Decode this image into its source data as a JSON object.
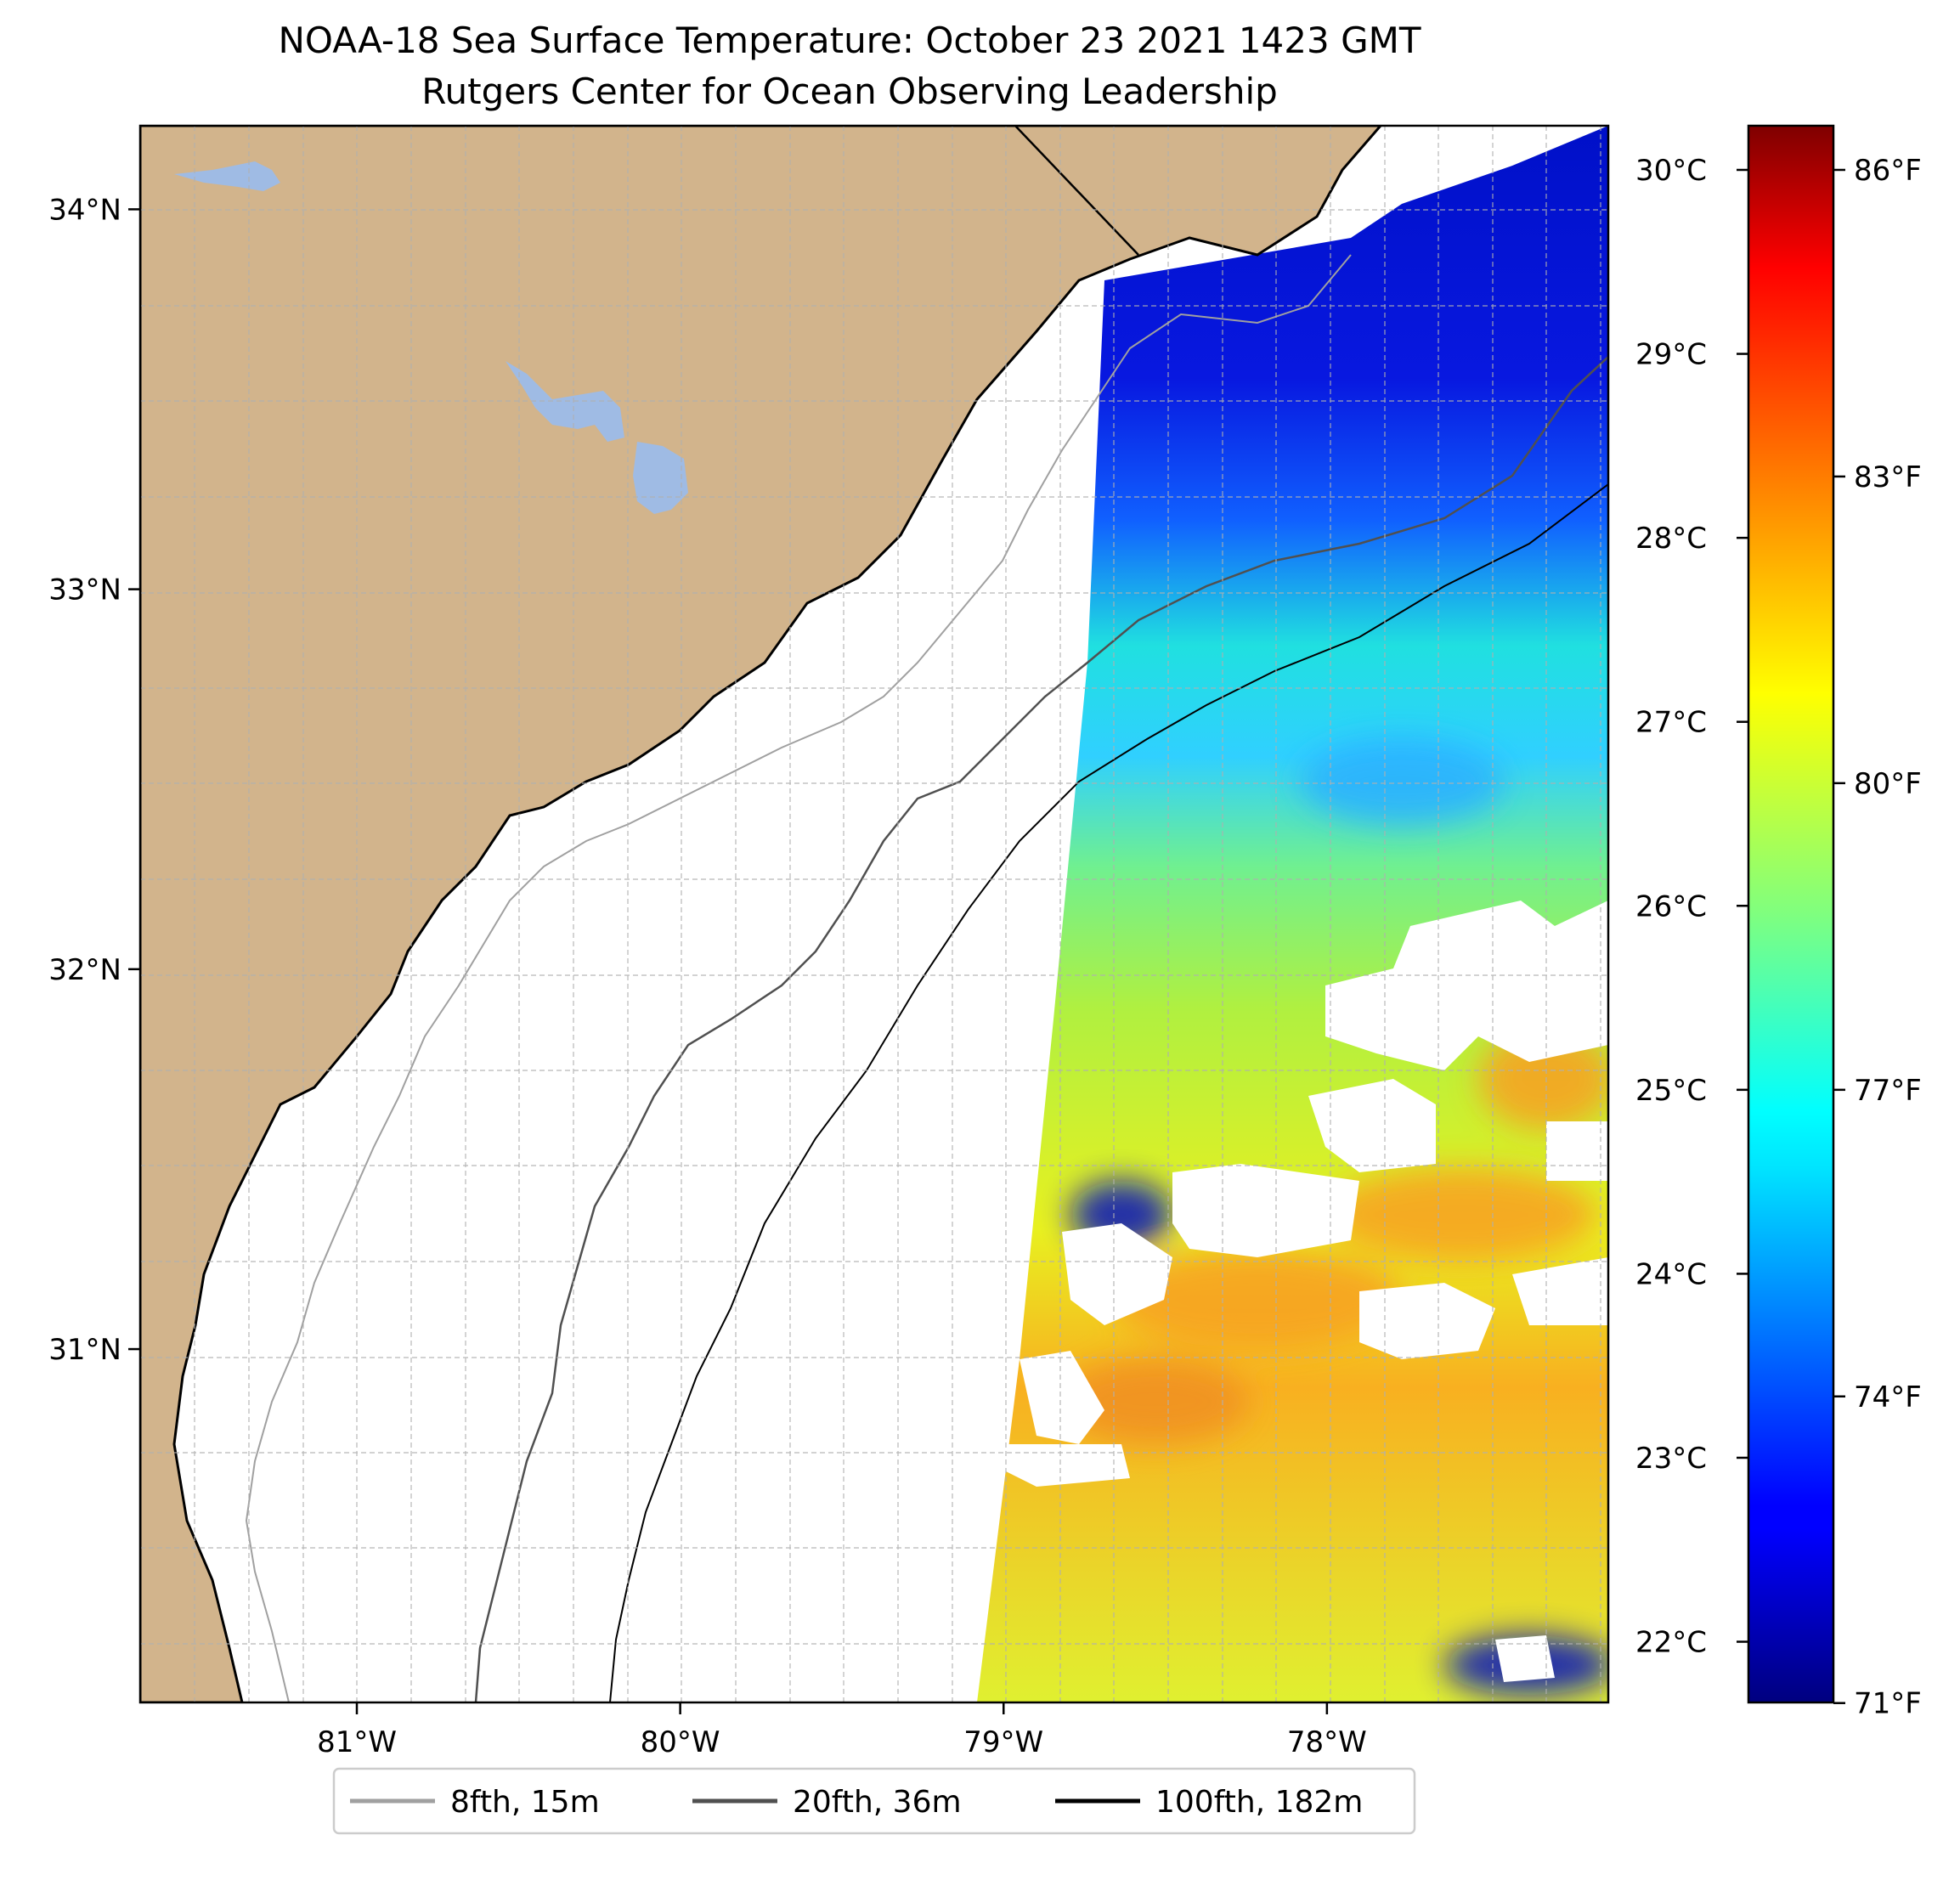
{
  "chart_data": {
    "type": "heatmap",
    "title": "NOAA-18 Sea Surface Temperature: October 23 2021 1423 GMT",
    "subtitle": "Rutgers Center for Ocean Observing Leadership",
    "x_ticks": [
      "81°W",
      "80°W",
      "79°W",
      "78°W"
    ],
    "x_tick_values": [
      -81,
      -80,
      -79,
      -78
    ],
    "y_ticks": [
      "34°N",
      "33°N",
      "32°N",
      "31°N"
    ],
    "y_tick_values": [
      34,
      33,
      32,
      31
    ],
    "xlim": [
      -81.67,
      -77.13
    ],
    "ylim": [
      30.07,
      34.22
    ],
    "colorbar_c_ticks": [
      "30°C",
      "29°C",
      "28°C",
      "27°C",
      "26°C",
      "25°C",
      "24°C",
      "23°C",
      "22°C"
    ],
    "colorbar_c_values": [
      30,
      29,
      28,
      27,
      26,
      25,
      24,
      23,
      22
    ],
    "colorbar_f_ticks": [
      "86°F",
      "83°F",
      "80°F",
      "77°F",
      "74°F",
      "71°F"
    ],
    "colorbar_f_values": [
      86,
      83,
      80,
      77,
      74,
      71
    ],
    "colorbar_range_c": [
      21.67,
      30.24
    ],
    "legend": {
      "placement": "bottom-center",
      "entries": [
        {
          "label": "8fth, 15m",
          "color": "#a0a0a0"
        },
        {
          "label": "20fth, 36m",
          "color": "#505050"
        },
        {
          "label": "100fth, 182m",
          "color": "#000000"
        }
      ]
    },
    "colors": {
      "land": "#d2b48c",
      "lakes": "#9fbbe4",
      "cloud_mask": "#ffffff",
      "gridline": "#b0b0b0"
    }
  }
}
